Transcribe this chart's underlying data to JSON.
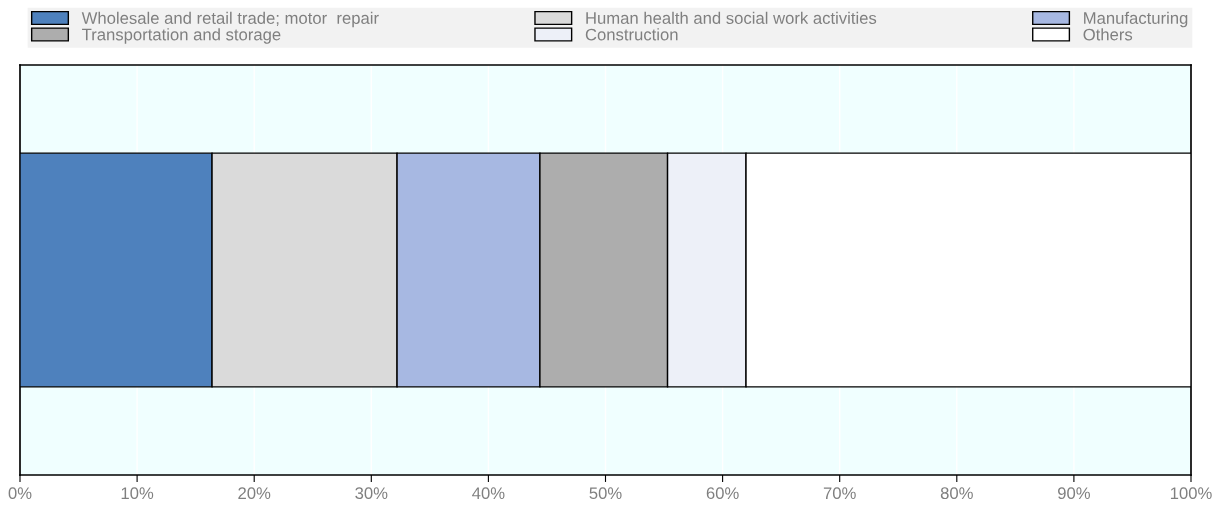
{
  "chart_data": {
    "type": "bar",
    "orientation": "horizontal",
    "stacked": true,
    "categories": [
      null
    ],
    "series": [
      {
        "name": "Wholesale and retail trade; motor  repair",
        "color": "#4e81bd",
        "values": [
          16.4
        ]
      },
      {
        "name": "Human health and social work activities",
        "color": "#dadada",
        "values": [
          15.8
        ]
      },
      {
        "name": "Manufacturing",
        "color": "#a7b8e2",
        "values": [
          12.2
        ]
      },
      {
        "name": "Transportation and storage",
        "color": "#adadad",
        "values": [
          10.9
        ]
      },
      {
        "name": "Construction",
        "color": "#edf0f8",
        "values": [
          6.7
        ]
      },
      {
        "name": "Others",
        "color": "#ffffff",
        "values": [
          38.0
        ]
      }
    ],
    "xlim": [
      0,
      100
    ],
    "xticks": [
      {
        "value": 0,
        "label": "0%"
      },
      {
        "value": 10,
        "label": "10%"
      },
      {
        "value": 20,
        "label": "20%"
      },
      {
        "value": 30,
        "label": "30%"
      },
      {
        "value": 40,
        "label": "40%"
      },
      {
        "value": 50,
        "label": "50%"
      },
      {
        "value": 60,
        "label": "60%"
      },
      {
        "value": 70,
        "label": "70%"
      },
      {
        "value": 80,
        "label": "80%"
      },
      {
        "value": 90,
        "label": "90%"
      },
      {
        "value": 100,
        "label": "100%"
      }
    ],
    "tick_labels": "x",
    "grid": "x",
    "legend": "top"
  }
}
